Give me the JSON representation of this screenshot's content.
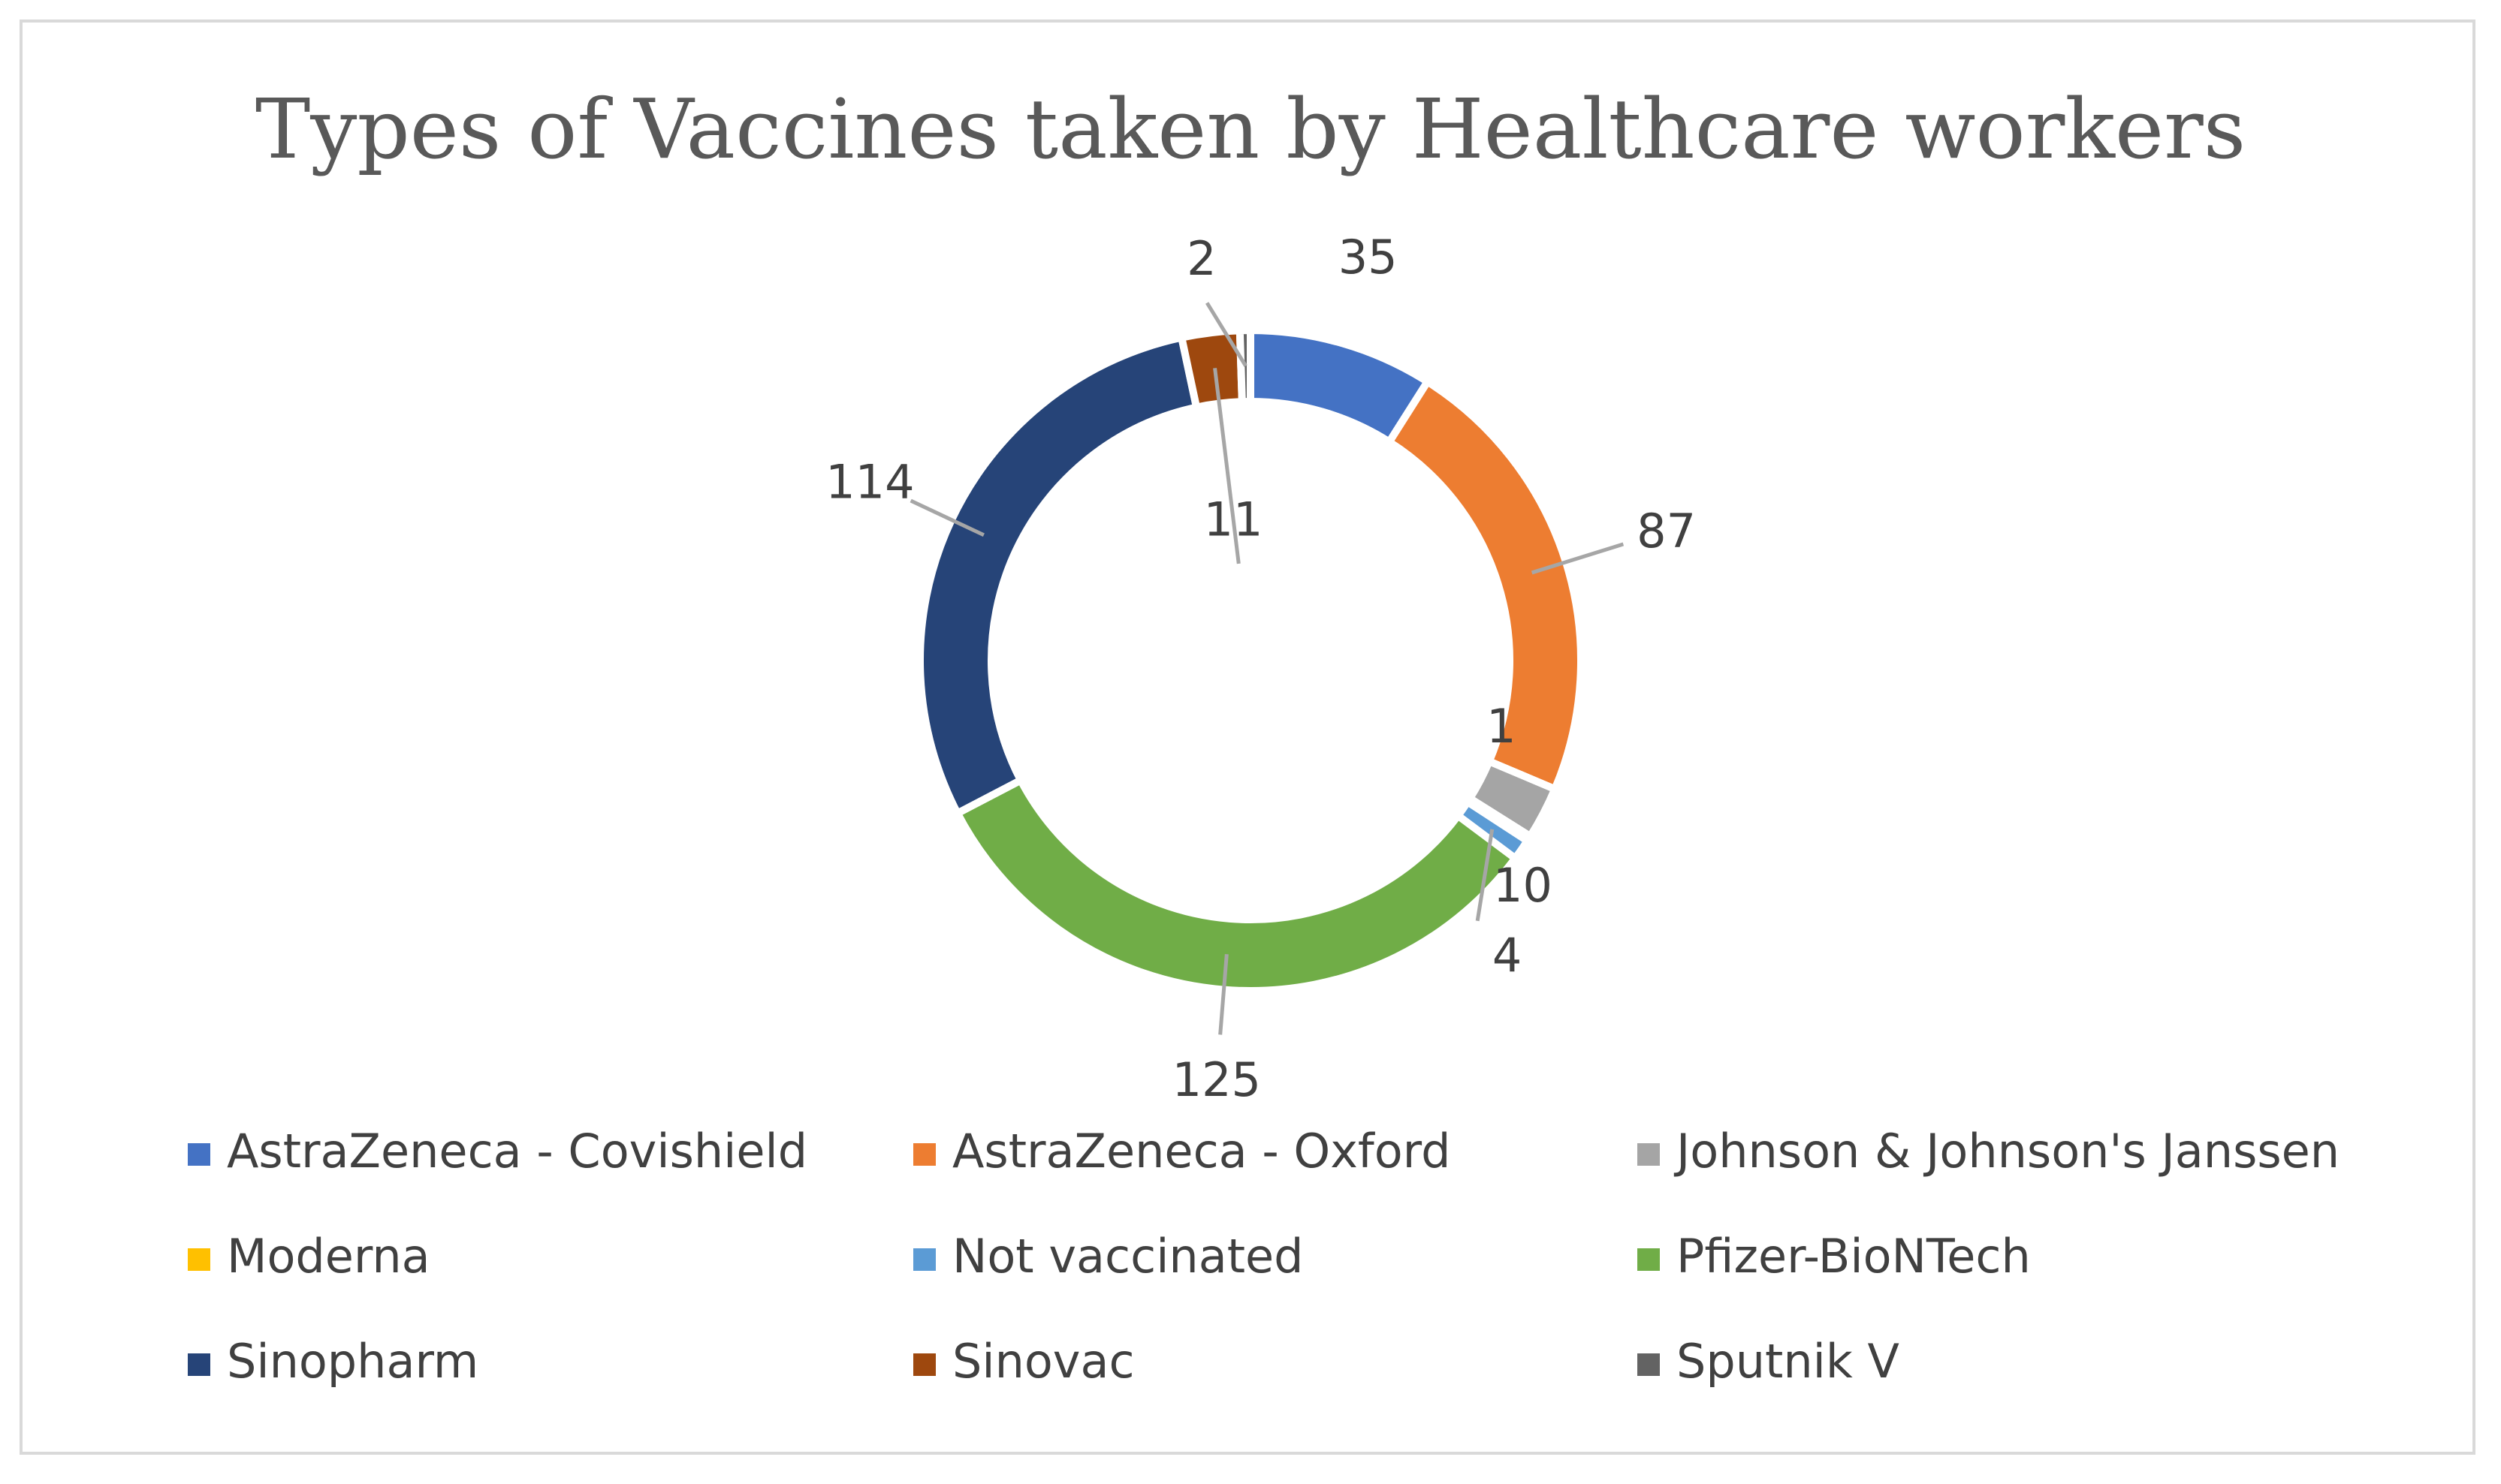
{
  "chart_data": {
    "type": "pie",
    "variant": "doughnut",
    "title": "Types of Vaccines taken by Healthcare workers",
    "categories": [
      "AstraZeneca - Covishield",
      "AstraZeneca - Oxford",
      "Johnson & Johnson's Janssen",
      "Moderna",
      "Not vaccinated",
      "Pfizer-BioNTech",
      "Sinopharm",
      "Sinovac",
      "Sputnik V"
    ],
    "values": [
      35,
      87,
      10,
      1,
      4,
      125,
      114,
      11,
      2
    ],
    "labels": [
      "35",
      "87",
      "10",
      "1",
      "4",
      "125",
      "114",
      "11",
      "2"
    ],
    "colors": [
      "#4472C4",
      "#ED7D31",
      "#A5A5A5",
      "#FFC000",
      "#5B9BD5",
      "#70AD47",
      "#264478",
      "#9E480E",
      "#636363"
    ],
    "legend_position": "bottom"
  }
}
